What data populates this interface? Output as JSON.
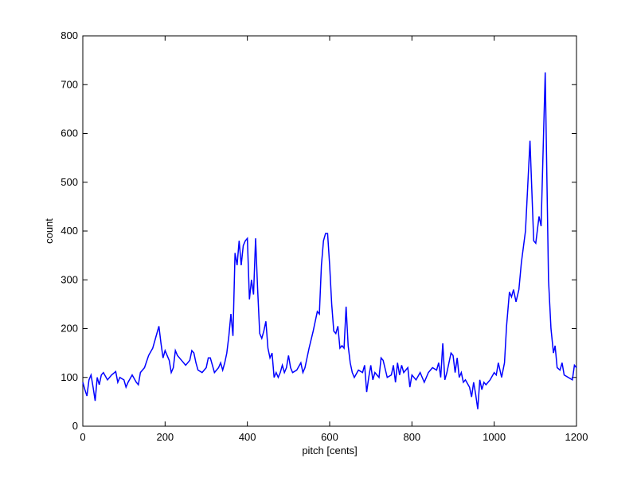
{
  "chart_data": {
    "type": "line",
    "x_label": "pitch [cents]",
    "y_label": "count",
    "x": [
      0,
      5,
      10,
      15,
      20,
      25,
      30,
      35,
      40,
      45,
      50,
      60,
      70,
      80,
      85,
      90,
      100,
      105,
      110,
      120,
      130,
      135,
      140,
      150,
      160,
      170,
      180,
      185,
      190,
      195,
      200,
      210,
      215,
      220,
      225,
      230,
      240,
      250,
      260,
      265,
      270,
      275,
      280,
      290,
      300,
      305,
      310,
      315,
      320,
      330,
      335,
      340,
      345,
      350,
      355,
      360,
      365,
      370,
      375,
      380,
      385,
      390,
      395,
      400,
      405,
      410,
      415,
      420,
      425,
      430,
      435,
      440,
      445,
      450,
      455,
      460,
      465,
      470,
      475,
      480,
      485,
      490,
      495,
      500,
      505,
      510,
      520,
      530,
      535,
      540,
      550,
      560,
      570,
      575,
      580,
      585,
      590,
      595,
      600,
      605,
      610,
      615,
      620,
      625,
      630,
      635,
      640,
      645,
      650,
      655,
      660,
      670,
      680,
      685,
      690,
      695,
      700,
      705,
      710,
      720,
      725,
      730,
      740,
      750,
      755,
      760,
      765,
      770,
      775,
      780,
      790,
      795,
      800,
      810,
      820,
      825,
      830,
      840,
      850,
      860,
      865,
      870,
      875,
      880,
      885,
      890,
      895,
      900,
      905,
      910,
      915,
      920,
      925,
      930,
      940,
      945,
      950,
      955,
      960,
      965,
      970,
      975,
      980,
      990,
      1000,
      1005,
      1010,
      1018,
      1025,
      1030,
      1037,
      1042,
      1047,
      1053,
      1060,
      1066,
      1076,
      1087,
      1096,
      1101,
      1109,
      1114,
      1120,
      1124,
      1132,
      1138,
      1144,
      1148,
      1153,
      1160,
      1165,
      1170,
      1180,
      1190,
      1195,
      1200
    ],
    "series": [
      {
        "name": "count",
        "color": "#0000ff",
        "values": [
          90,
          75,
          62,
          95,
          105,
          80,
          52,
          100,
          85,
          105,
          110,
          95,
          105,
          112,
          90,
          100,
          95,
          80,
          90,
          105,
          90,
          85,
          110,
          120,
          145,
          160,
          190,
          205,
          170,
          140,
          155,
          135,
          110,
          120,
          155,
          145,
          135,
          125,
          135,
          155,
          150,
          130,
          115,
          110,
          120,
          140,
          140,
          125,
          110,
          120,
          130,
          115,
          130,
          150,
          185,
          230,
          185,
          355,
          330,
          380,
          330,
          370,
          380,
          385,
          260,
          300,
          270,
          385,
          280,
          190,
          180,
          195,
          215,
          160,
          140,
          150,
          100,
          110,
          100,
          110,
          125,
          110,
          120,
          145,
          120,
          110,
          115,
          130,
          110,
          120,
          160,
          195,
          235,
          230,
          330,
          380,
          395,
          395,
          330,
          250,
          195,
          190,
          205,
          160,
          165,
          160,
          245,
          165,
          130,
          110,
          100,
          115,
          110,
          125,
          70,
          100,
          125,
          95,
          110,
          100,
          140,
          135,
          100,
          105,
          125,
          90,
          130,
          105,
          125,
          110,
          120,
          80,
          105,
          95,
          110,
          100,
          90,
          110,
          120,
          115,
          130,
          100,
          170,
          95,
          110,
          130,
          150,
          145,
          110,
          140,
          100,
          110,
          90,
          95,
          80,
          60,
          90,
          65,
          35,
          95,
          75,
          90,
          85,
          95,
          110,
          105,
          130,
          100,
          130,
          205,
          275,
          265,
          280,
          255,
          280,
          335,
          400,
          585,
          380,
          375,
          430,
          410,
          600,
          725,
          300,
          200,
          150,
          165,
          120,
          115,
          130,
          105,
          100,
          95,
          125,
          120
        ]
      }
    ],
    "xlim": [
      0,
      1200
    ],
    "xticks": [
      0,
      200,
      400,
      600,
      800,
      1000,
      1200
    ],
    "ylim": [
      0,
      800
    ],
    "yticks": [
      0,
      100,
      200,
      300,
      400,
      500,
      600,
      700,
      800
    ]
  }
}
